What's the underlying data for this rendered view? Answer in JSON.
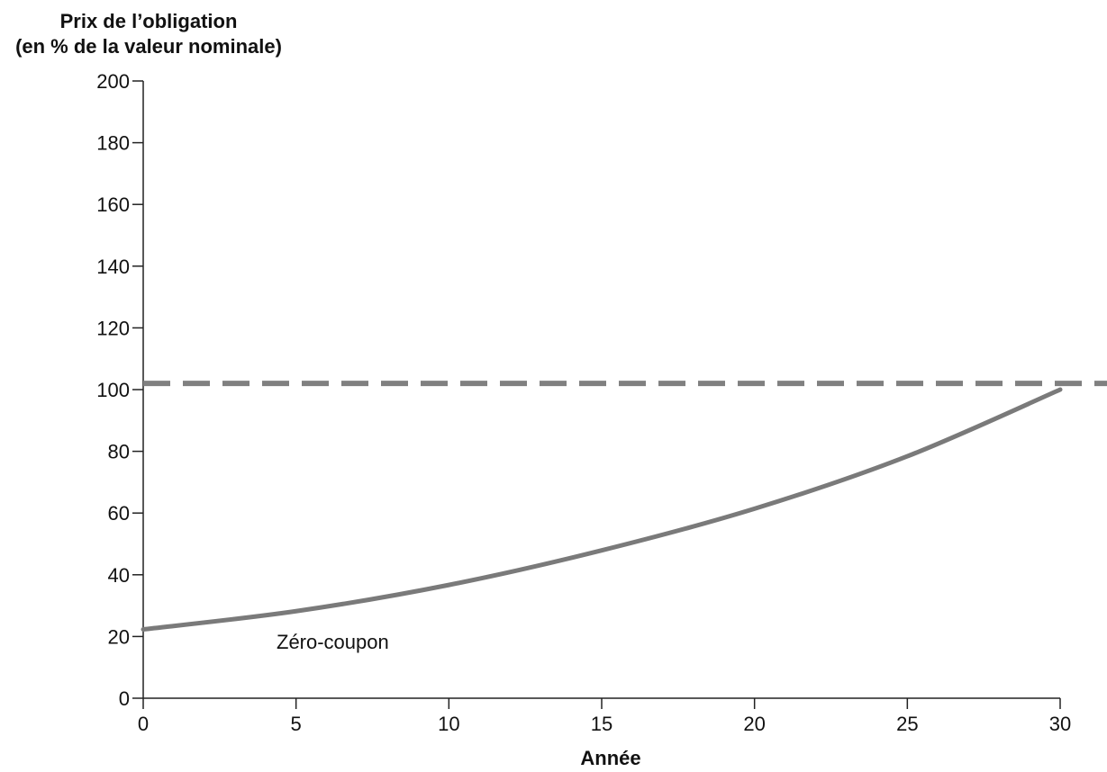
{
  "chart_data": {
    "type": "line",
    "ylabel_lines": [
      "Prix de l’obligation",
      "(en % de la valeur nominale)"
    ],
    "xlabel": "Année",
    "xlim": [
      0,
      30
    ],
    "ylim": [
      0,
      200
    ],
    "xticks": [
      0,
      5,
      10,
      15,
      20,
      25,
      30
    ],
    "yticks": [
      0,
      20,
      40,
      60,
      80,
      100,
      120,
      140,
      160,
      180,
      200
    ],
    "grid": false,
    "series": [
      {
        "name": "Zéro-coupon",
        "style": "solid",
        "color": "#7a7a7a",
        "x": [
          0,
          5,
          10,
          15,
          20,
          25,
          30
        ],
        "y": [
          22.3,
          28.2,
          36.7,
          47.9,
          61.4,
          78.4,
          100
        ]
      }
    ],
    "reference_lines": [
      {
        "orientation": "horizontal",
        "y": 102,
        "style": "dashed",
        "color": "#808080"
      }
    ],
    "annotations": [
      {
        "text": "Zéro-coupon",
        "x": 6.2,
        "y": 16
      }
    ]
  }
}
